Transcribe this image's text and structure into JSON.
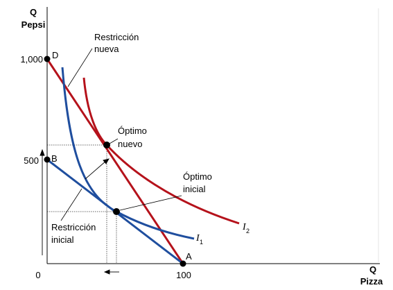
{
  "chart_data": {
    "type": "line",
    "y_axis_title": [
      "Q",
      "Pepsi"
    ],
    "x_axis_title": [
      "Q",
      "Pizza"
    ],
    "origin_label": "0",
    "y_ticks": [
      {
        "value": 1000,
        "label": "1,000"
      },
      {
        "value": 500,
        "label": "500"
      }
    ],
    "x_ticks": [
      {
        "value": 100,
        "label": "100"
      }
    ],
    "points": [
      {
        "name": "D",
        "x": 0,
        "y": 1000
      },
      {
        "name": "B",
        "x": 0,
        "y": 500
      },
      {
        "name": "A",
        "x": 100,
        "y": 0
      }
    ],
    "series": [
      {
        "name": "Restricción nueva",
        "color": "#b5121b",
        "x": [
          0,
          100
        ],
        "y": [
          1000,
          0
        ]
      },
      {
        "name": "Restricción inicial",
        "color": "#1f4e9e",
        "x": [
          0,
          100
        ],
        "y": [
          500,
          0
        ]
      },
      {
        "name": "I1",
        "color": "#1f4e9e"
      },
      {
        "name": "I2",
        "color": "#b5121b"
      }
    ],
    "annotations": {
      "restriccion_nueva": [
        "Restricción",
        "nueva"
      ],
      "restriccion_inicial": [
        "Restricción",
        "inicial"
      ],
      "optimo_nuevo": [
        "Óptimo",
        "nuevo"
      ],
      "optimo_inicial": [
        "Óptimo",
        "inicial"
      ],
      "i1_label": "I",
      "i1_sub": "1",
      "i2_label": "I",
      "i2_sub": "2"
    }
  }
}
